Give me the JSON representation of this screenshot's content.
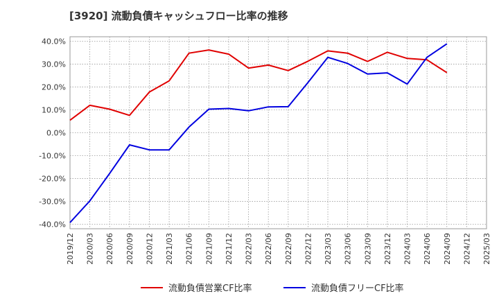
{
  "chart_data": {
    "type": "line",
    "title": "[3920]  流動負債キャッシュフロー比率の推移",
    "x": [
      "2019/12",
      "2020/03",
      "2020/06",
      "2020/09",
      "2020/12",
      "2021/03",
      "2021/06",
      "2021/09",
      "2021/12",
      "2022/03",
      "2022/06",
      "2022/09",
      "2022/12",
      "2023/03",
      "2023/06",
      "2023/09",
      "2023/12",
      "2024/03",
      "2024/06",
      "2024/09",
      "2024/12",
      "2025/03"
    ],
    "y_ticks": [
      "40.0%",
      "30.0%",
      "20.0%",
      "10.0%",
      "0.0%",
      "-10.0%",
      "-20.0%",
      "-30.0%",
      "-40.0%"
    ],
    "ylim": [
      -42,
      42
    ],
    "grid": true,
    "series": [
      {
        "name": "流動負債営業CF比率",
        "color": "#e00000",
        "values": [
          5.5,
          12.0,
          10.3,
          7.6,
          17.8,
          22.7,
          34.8,
          36.2,
          34.4,
          28.3,
          29.6,
          27.2,
          31.3,
          35.8,
          34.8,
          31.2,
          35.2,
          32.5,
          31.9,
          26.3,
          null,
          null
        ]
      },
      {
        "name": "流動負債フリーCF比率",
        "color": "#0000e0",
        "values": [
          -39.3,
          -29.8,
          -17.8,
          -5.3,
          -7.5,
          -7.5,
          2.5,
          10.3,
          10.6,
          9.6,
          11.3,
          11.4,
          22.0,
          33.0,
          30.3,
          25.7,
          26.2,
          21.3,
          33.0,
          38.9,
          null,
          null
        ]
      }
    ],
    "legend_position": "bottom"
  }
}
